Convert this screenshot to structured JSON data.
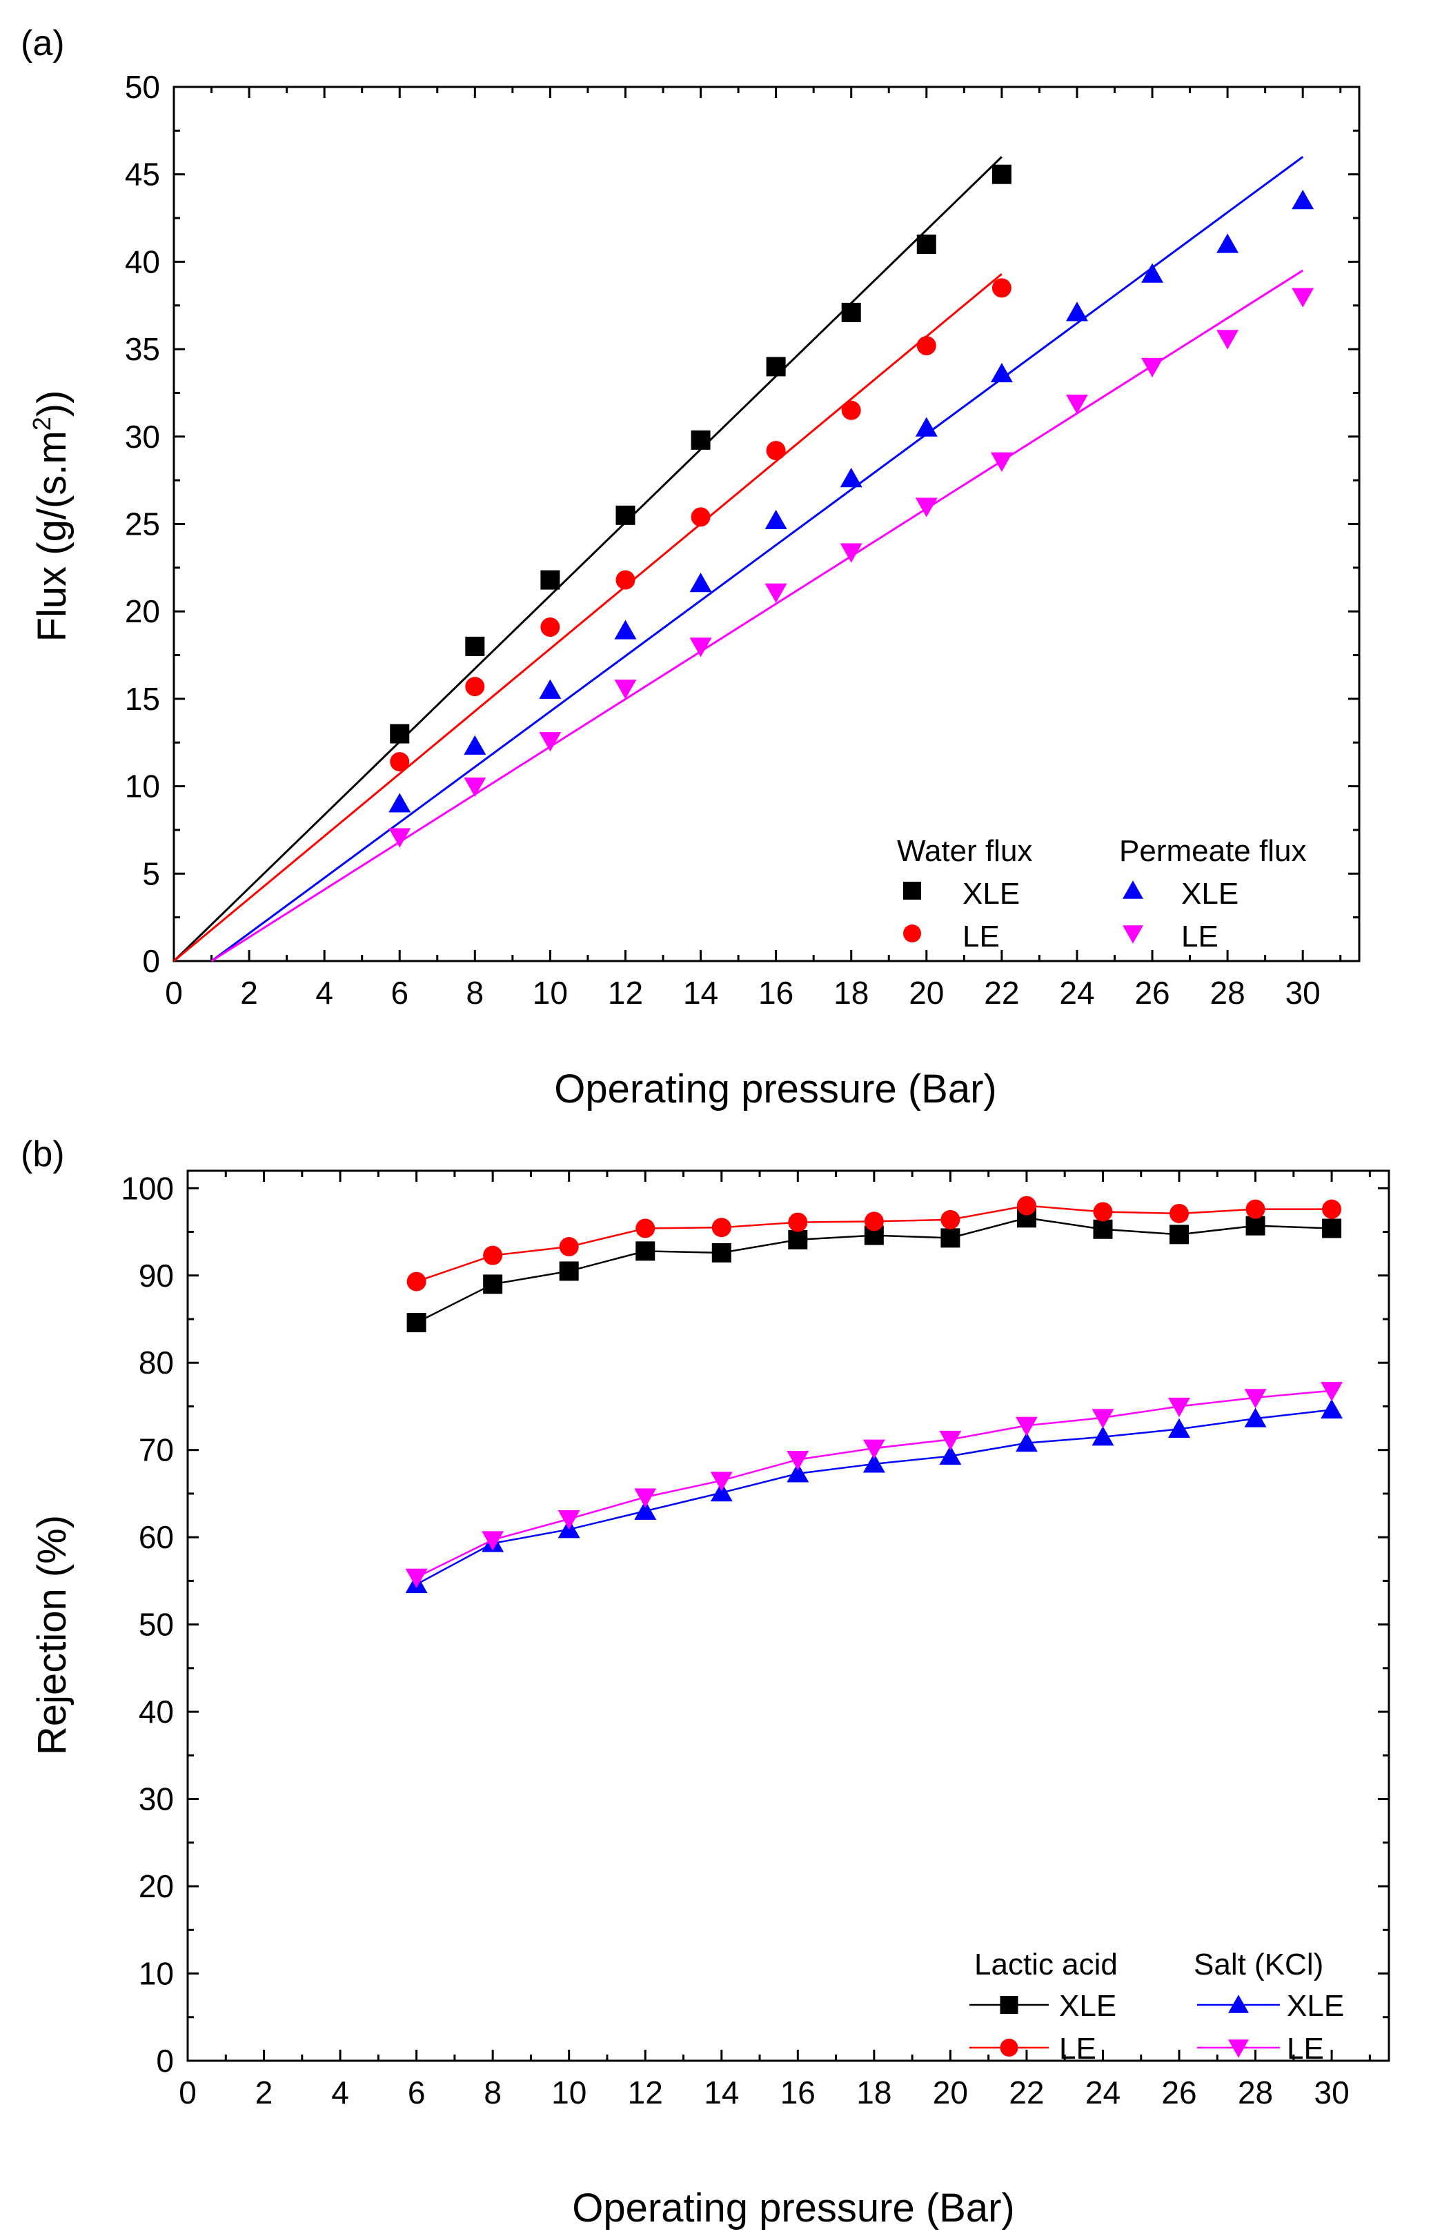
{
  "chart_data": [
    {
      "type": "scatter",
      "panel_label": "(a)",
      "title": "",
      "xlabel": "Operating pressure (Bar)",
      "ylabel_prefix": "Flux (g/(s.m",
      "ylabel_sup": "2",
      "ylabel_suffix": "))",
      "xlim": [
        0,
        31.5
      ],
      "ylim": [
        0,
        50
      ],
      "xticks": [
        0,
        2,
        4,
        6,
        8,
        10,
        12,
        14,
        16,
        18,
        20,
        22,
        24,
        26,
        28,
        30
      ],
      "yticks": [
        0,
        5,
        10,
        15,
        20,
        25,
        30,
        35,
        40,
        45,
        50
      ],
      "grid": false,
      "legend": {
        "position": "bottom-right",
        "group_titles": [
          "Water flux",
          "Permeate flux"
        ],
        "entries": [
          "XLE",
          "LE",
          "XLE",
          "LE"
        ]
      },
      "series": [
        {
          "name": "Water flux XLE",
          "marker": "square",
          "color": "#000000",
          "x": [
            6,
            8,
            10,
            12,
            14,
            16,
            18,
            20,
            22
          ],
          "y": [
            13.0,
            18.0,
            21.8,
            25.5,
            29.8,
            34.0,
            37.1,
            41.0,
            45.0
          ],
          "fit_line": {
            "x": [
              0,
              22
            ],
            "y": [
              0,
              46.0
            ]
          }
        },
        {
          "name": "Water flux LE",
          "marker": "circle",
          "color": "#ff0000",
          "x": [
            6,
            8,
            10,
            12,
            14,
            16,
            18,
            20,
            22
          ],
          "y": [
            11.4,
            15.7,
            19.1,
            21.8,
            25.4,
            29.2,
            31.5,
            35.2,
            38.5
          ],
          "fit_line": {
            "x": [
              0,
              22
            ],
            "y": [
              0,
              39.3
            ]
          }
        },
        {
          "name": "Permeate flux XLE",
          "marker": "triangle-up",
          "color": "#0000ff",
          "x": [
            6,
            8,
            10,
            12,
            14,
            16,
            18,
            20,
            22,
            24,
            26,
            28,
            30
          ],
          "y": [
            9.0,
            12.3,
            15.5,
            18.9,
            21.6,
            25.2,
            27.6,
            30.5,
            33.6,
            37.1,
            39.3,
            41.0,
            43.5
          ],
          "fit_line": {
            "x": [
              1,
              30
            ],
            "y": [
              0,
              46.0
            ]
          }
        },
        {
          "name": "Permeate flux LE",
          "marker": "triangle-down",
          "color": "#ff00ff",
          "x": [
            6,
            8,
            10,
            12,
            14,
            16,
            18,
            20,
            22,
            24,
            26,
            28,
            30
          ],
          "y": [
            7.1,
            10.0,
            12.6,
            15.6,
            18.0,
            21.1,
            23.4,
            26.0,
            28.6,
            31.9,
            34.0,
            35.6,
            38.0
          ],
          "fit_line": {
            "x": [
              1,
              30
            ],
            "y": [
              0,
              39.5
            ]
          }
        }
      ]
    },
    {
      "type": "line",
      "panel_label": "(b)",
      "title": "",
      "xlabel": "Operating pressure (Bar)",
      "ylabel": "Rejection (%)",
      "xlim": [
        0,
        31.5
      ],
      "ylim": [
        0,
        102
      ],
      "xticks": [
        0,
        2,
        4,
        6,
        8,
        10,
        12,
        14,
        16,
        18,
        20,
        22,
        24,
        26,
        28,
        30
      ],
      "yticks": [
        0,
        10,
        20,
        30,
        40,
        50,
        60,
        70,
        80,
        90,
        100
      ],
      "grid": false,
      "legend": {
        "position": "bottom-right",
        "group_titles": [
          "Lactic acid",
          "Salt (KCl)"
        ],
        "entries": [
          "XLE",
          "LE",
          "XLE",
          "LE"
        ]
      },
      "series": [
        {
          "name": "Lactic acid XLE",
          "marker": "square",
          "color": "#000000",
          "x": [
            6,
            8,
            10,
            12,
            14,
            16,
            18,
            20,
            22,
            24,
            26,
            28,
            30
          ],
          "y": [
            84.6,
            89.0,
            90.5,
            92.8,
            92.6,
            94.1,
            94.6,
            94.3,
            96.6,
            95.3,
            94.7,
            95.7,
            95.4
          ]
        },
        {
          "name": "Lactic acid LE",
          "marker": "circle",
          "color": "#ff0000",
          "x": [
            6,
            8,
            10,
            12,
            14,
            16,
            18,
            20,
            22,
            24,
            26,
            28,
            30
          ],
          "y": [
            89.3,
            92.3,
            93.3,
            95.4,
            95.5,
            96.1,
            96.2,
            96.4,
            98.0,
            97.3,
            97.1,
            97.6,
            97.6
          ]
        },
        {
          "name": "Salt (KCl) XLE",
          "marker": "triangle-up",
          "color": "#0000ff",
          "x": [
            6,
            8,
            10,
            12,
            14,
            16,
            18,
            20,
            22,
            24,
            26,
            28,
            30
          ],
          "y": [
            54.6,
            59.3,
            60.9,
            63.0,
            65.1,
            67.3,
            68.4,
            69.3,
            70.8,
            71.5,
            72.4,
            73.6,
            74.6
          ]
        },
        {
          "name": "Salt (KCl) LE",
          "marker": "triangle-down",
          "color": "#ff00ff",
          "x": [
            6,
            8,
            10,
            12,
            14,
            16,
            18,
            20,
            22,
            24,
            26,
            28,
            30
          ],
          "y": [
            55.4,
            59.7,
            62.1,
            64.6,
            66.5,
            68.9,
            70.2,
            71.2,
            72.8,
            73.7,
            75.0,
            76.0,
            76.8
          ]
        }
      ]
    }
  ]
}
